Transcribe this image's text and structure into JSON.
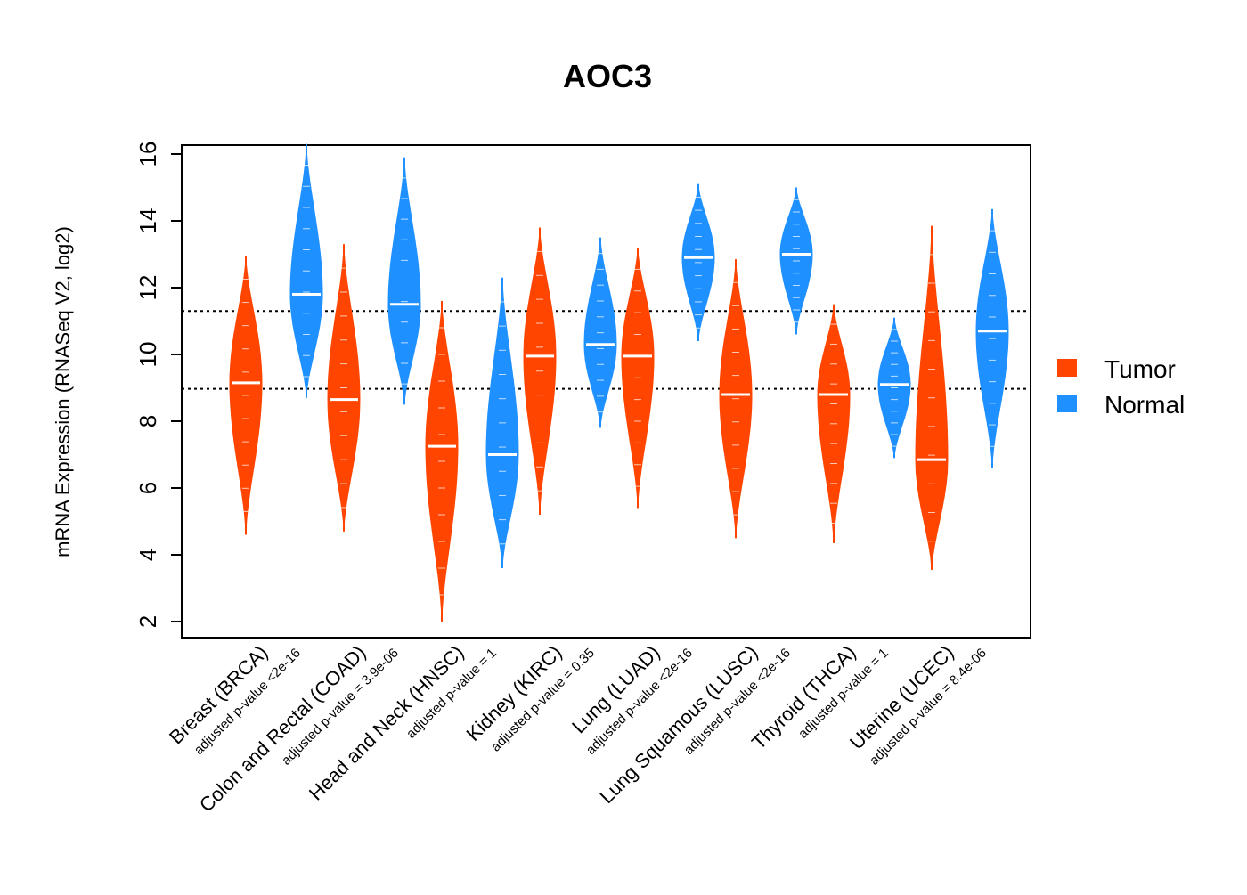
{
  "chart_data": {
    "type": "violin",
    "title": "AOC3",
    "xlabel": "",
    "ylabel": "mRNA Expression (RNASeq V2, log2)",
    "ylim": [
      1.6,
      16.3
    ],
    "yticks": [
      2,
      4,
      6,
      8,
      10,
      12,
      14,
      16
    ],
    "reference_lines": [
      11.3,
      8.97
    ],
    "colors": {
      "Tumor": "#FF4500",
      "Normal": "#1E90FF"
    },
    "legend": {
      "position": "right",
      "entries": [
        "Tumor",
        "Normal"
      ]
    },
    "categories": [
      "Breast (BRCA)",
      "Colon and Rectal (COAD)",
      "Head and Neck (HNSC)",
      "Kidney (KIRC)",
      "Lung (LUAD)",
      "Lung Squamous (LUSC)",
      "Thyroid (THCA)",
      "Uterine (UCEC)"
    ],
    "pvalues": [
      "adjusted p-value <2e-16",
      "adjusted p-value = 3.9e-06",
      "adjusted p-value = 1",
      "adjusted p-value = 0.35",
      "adjusted p-value <2e-16",
      "adjusted p-value <2e-16",
      "adjusted p-value = 1",
      "adjusted p-value = 8.4e-06"
    ],
    "series": [
      {
        "name": "Tumor",
        "median": [
          9.15,
          8.65,
          7.25,
          9.95,
          9.95,
          8.8,
          8.8,
          6.85
        ],
        "min": [
          4.6,
          4.7,
          2.0,
          5.2,
          5.4,
          4.5,
          4.35,
          3.55
        ],
        "max": [
          12.95,
          13.3,
          11.6,
          13.8,
          13.2,
          12.85,
          11.5,
          13.85
        ]
      },
      {
        "name": "Normal",
        "median": [
          11.8,
          11.5,
          7.0,
          10.3,
          12.9,
          13.0,
          9.1,
          10.7
        ],
        "min": [
          8.7,
          8.5,
          3.6,
          7.8,
          10.4,
          10.6,
          6.9,
          6.6
        ],
        "max": [
          16.3,
          15.9,
          12.3,
          13.5,
          15.1,
          15.0,
          11.1,
          14.35
        ]
      }
    ]
  }
}
